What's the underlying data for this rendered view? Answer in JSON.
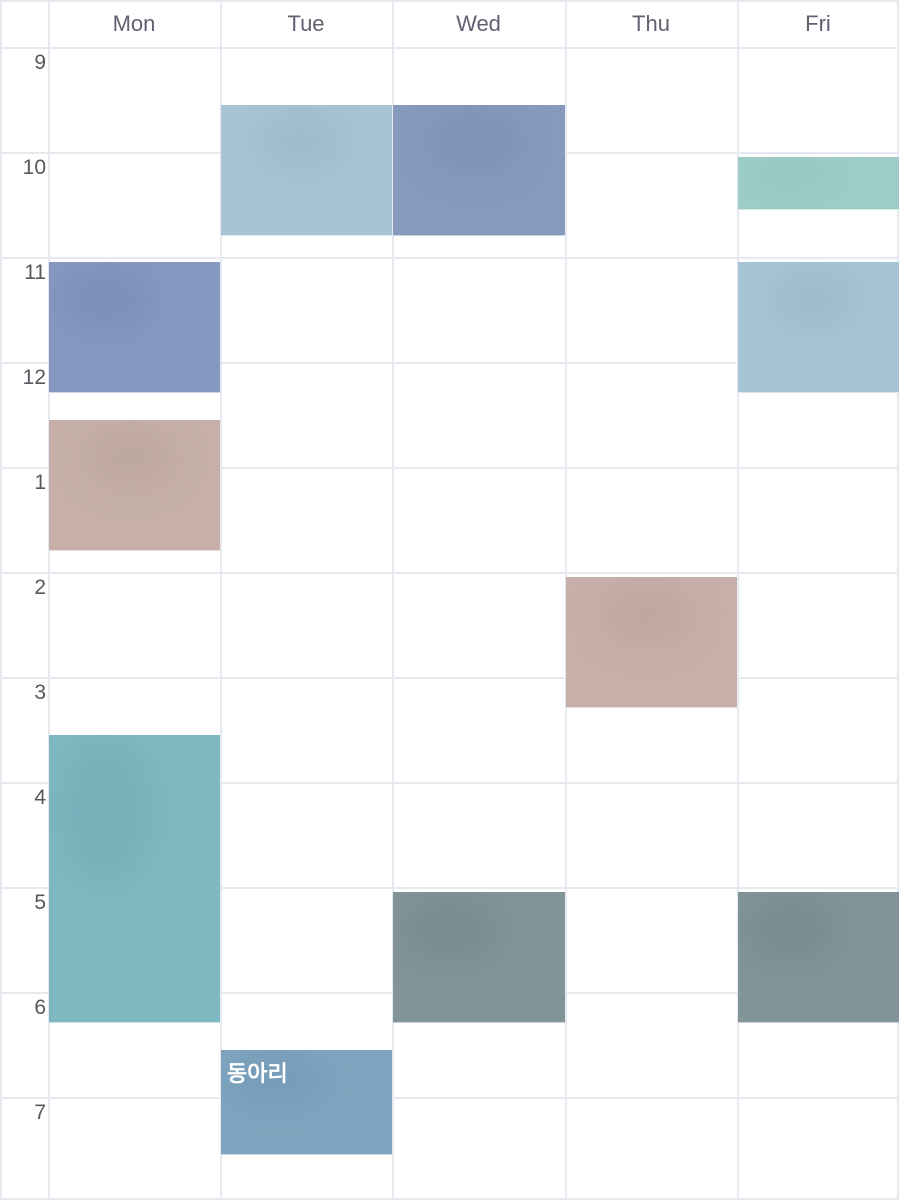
{
  "days": [
    "Mon",
    "Tue",
    "Wed",
    "Thu",
    "Fri"
  ],
  "hours": [
    "9",
    "10",
    "11",
    "12",
    "1",
    "2",
    "3",
    "4",
    "5",
    "6",
    "7"
  ],
  "colors": {
    "grid_line": "#e7e9f1",
    "header_text": "#5f6270",
    "hour_text": "#55585f"
  },
  "events": [
    {
      "id": "mon-1",
      "day": 0,
      "start": 11.0,
      "end": 12.25,
      "color": "#8598bf",
      "label": ""
    },
    {
      "id": "mon-2",
      "day": 0,
      "start": 12.5,
      "end": 13.75,
      "color": "#c6b0a9",
      "label": ""
    },
    {
      "id": "mon-3",
      "day": 0,
      "start": 15.5,
      "end": 18.25,
      "color": "#80b8c2",
      "label": ""
    },
    {
      "id": "tue-1",
      "day": 1,
      "start": 9.5,
      "end": 10.75,
      "color": "#a7c4d4",
      "label": ""
    },
    {
      "id": "tue-2",
      "day": 1,
      "start": 18.5,
      "end": 19.5,
      "color": "#7ea4bf",
      "label": "동아리"
    },
    {
      "id": "wed-1",
      "day": 2,
      "start": 9.5,
      "end": 10.75,
      "color": "#869abe",
      "label": ""
    },
    {
      "id": "wed-2",
      "day": 2,
      "start": 17.0,
      "end": 18.25,
      "color": "#819497",
      "label": ""
    },
    {
      "id": "thu-1",
      "day": 3,
      "start": 14.0,
      "end": 15.25,
      "color": "#c7b0a9",
      "label": ""
    },
    {
      "id": "fri-1",
      "day": 4,
      "start": 10.0,
      "end": 10.5,
      "color": "#9ecdc9",
      "label": ""
    },
    {
      "id": "fri-2",
      "day": 4,
      "start": 11.0,
      "end": 12.25,
      "color": "#a6c4d5",
      "label": ""
    },
    {
      "id": "fri-3",
      "day": 4,
      "start": 17.0,
      "end": 18.25,
      "color": "#819497",
      "label": ""
    }
  ]
}
